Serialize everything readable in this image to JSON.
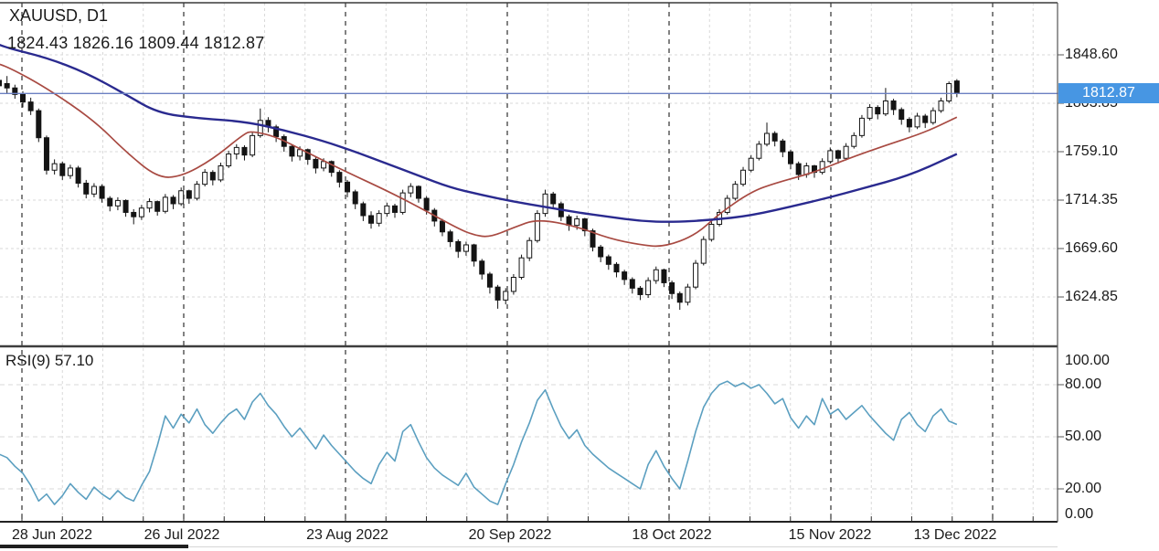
{
  "header": {
    "symbol_period": "XAUUSD, D1",
    "ohlc_line": "1824.43 1826.16 1809.44 1812.87"
  },
  "indicator": {
    "label": "RSI(9) 57.10"
  },
  "price_tag": {
    "value": "1812.87"
  },
  "price_axis": {
    "labels": [
      "1848.60",
      "1803.85",
      "1759.10",
      "1714.35",
      "1669.60",
      "1624.85"
    ],
    "values": [
      1848.6,
      1803.85,
      1759.1,
      1714.35,
      1669.6,
      1624.85
    ]
  },
  "rsi_axis": {
    "labels": [
      "100.00",
      "80.00",
      "50.00",
      "20.00",
      "0.00"
    ],
    "values": [
      100,
      80,
      50,
      20,
      0
    ]
  },
  "x_axis": {
    "labels": [
      "28 Jun 2022",
      "26 Jul 2022",
      "23 Aug 2022",
      "20 Sep 2022",
      "18 Oct 2022",
      "15 Nov 2022",
      "13 Dec 2022"
    ]
  },
  "colors": {
    "bull_fill": "#ffffff",
    "bear_fill": "#141414",
    "candle_stroke": "#141414",
    "ma_fast": "#a84a42",
    "ma_slow": "#2a2a8f",
    "price_line": "#6b80c2",
    "tag_bg": "#4796e3",
    "tag_text": "#ffffff",
    "rsi_line": "#5b9fc0",
    "grid_light": "#d9d9d9",
    "grid_dark": "#2f2f2f",
    "border": "#3a3a3a",
    "text": "#1a1a1a"
  },
  "chart_data": [
    {
      "type": "candlestick",
      "title": "XAUUSD, D1",
      "last_values": {
        "open": 1824.43,
        "high": 1826.16,
        "low": 1809.44,
        "close": 1812.87
      },
      "last_price": 1812.87,
      "y_ticks": [
        1848.6,
        1803.85,
        1759.1,
        1714.35,
        1669.6,
        1624.85
      ],
      "ylim_visible": [
        1580,
        1897
      ],
      "x_tick_labels": [
        "28 Jun 2022",
        "26 Jul 2022",
        "23 Aug 2022",
        "20 Sep 2022",
        "18 Oct 2022",
        "15 Nov 2022",
        "13 Dec 2022"
      ],
      "grid": true,
      "candles": [
        [
          1825,
          1831,
          1814,
          1820
        ],
        [
          1822,
          1829,
          1813,
          1818
        ],
        [
          1818,
          1821,
          1808,
          1812
        ],
        [
          1812,
          1815,
          1800,
          1805
        ],
        [
          1805,
          1809,
          1793,
          1797
        ],
        [
          1797,
          1799,
          1768,
          1772
        ],
        [
          1772,
          1774,
          1738,
          1742
        ],
        [
          1742,
          1752,
          1738,
          1748
        ],
        [
          1748,
          1750,
          1733,
          1737
        ],
        [
          1737,
          1747,
          1734,
          1744
        ],
        [
          1744,
          1746,
          1726,
          1730
        ],
        [
          1730,
          1733,
          1716,
          1720
        ],
        [
          1720,
          1730,
          1717,
          1727
        ],
        [
          1727,
          1729,
          1712,
          1716
        ],
        [
          1716,
          1718,
          1704,
          1709
        ],
        [
          1709,
          1717,
          1705,
          1714
        ],
        [
          1714,
          1715,
          1699,
          1703
        ],
        [
          1703,
          1706,
          1692,
          1699
        ],
        [
          1699,
          1710,
          1696,
          1707
        ],
        [
          1707,
          1716,
          1703,
          1713
        ],
        [
          1713,
          1714,
          1700,
          1704
        ],
        [
          1704,
          1720,
          1702,
          1717
        ],
        [
          1717,
          1719,
          1706,
          1711
        ],
        [
          1711,
          1726,
          1709,
          1723
        ],
        [
          1723,
          1724,
          1711,
          1716
        ],
        [
          1716,
          1732,
          1714,
          1729
        ],
        [
          1729,
          1743,
          1727,
          1740
        ],
        [
          1740,
          1742,
          1728,
          1733
        ],
        [
          1733,
          1749,
          1731,
          1746
        ],
        [
          1746,
          1760,
          1744,
          1757
        ],
        [
          1757,
          1766,
          1752,
          1763
        ],
        [
          1763,
          1765,
          1751,
          1756
        ],
        [
          1756,
          1777,
          1754,
          1774
        ],
        [
          1774,
          1799,
          1772,
          1788
        ],
        [
          1788,
          1791,
          1777,
          1782
        ],
        [
          1782,
          1784,
          1768,
          1773
        ],
        [
          1773,
          1775,
          1759,
          1764
        ],
        [
          1764,
          1766,
          1750,
          1755
        ],
        [
          1755,
          1764,
          1751,
          1761
        ],
        [
          1761,
          1762,
          1747,
          1752
        ],
        [
          1752,
          1754,
          1739,
          1744
        ],
        [
          1744,
          1753,
          1741,
          1750
        ],
        [
          1750,
          1751,
          1736,
          1740
        ],
        [
          1740,
          1742,
          1726,
          1731
        ],
        [
          1731,
          1733,
          1717,
          1722
        ],
        [
          1722,
          1724,
          1706,
          1711
        ],
        [
          1711,
          1713,
          1695,
          1700
        ],
        [
          1700,
          1704,
          1688,
          1693
        ],
        [
          1693,
          1705,
          1690,
          1702
        ],
        [
          1702,
          1712,
          1699,
          1709
        ],
        [
          1709,
          1711,
          1698,
          1703
        ],
        [
          1703,
          1724,
          1701,
          1721
        ],
        [
          1721,
          1730,
          1717,
          1727
        ],
        [
          1727,
          1728,
          1712,
          1716
        ],
        [
          1716,
          1718,
          1701,
          1705
        ],
        [
          1705,
          1707,
          1690,
          1695
        ],
        [
          1695,
          1697,
          1681,
          1685
        ],
        [
          1685,
          1687,
          1671,
          1676
        ],
        [
          1676,
          1678,
          1661,
          1667
        ],
        [
          1667,
          1676,
          1663,
          1673
        ],
        [
          1673,
          1674,
          1653,
          1658
        ],
        [
          1658,
          1660,
          1641,
          1646
        ],
        [
          1646,
          1648,
          1628,
          1634
        ],
        [
          1634,
          1636,
          1614,
          1622
        ],
        [
          1622,
          1633,
          1618,
          1630
        ],
        [
          1630,
          1646,
          1627,
          1643
        ],
        [
          1643,
          1664,
          1641,
          1661
        ],
        [
          1661,
          1680,
          1658,
          1677
        ],
        [
          1677,
          1705,
          1675,
          1702
        ],
        [
          1702,
          1724,
          1699,
          1720
        ],
        [
          1720,
          1722,
          1706,
          1711
        ],
        [
          1711,
          1713,
          1695,
          1699
        ],
        [
          1699,
          1701,
          1686,
          1691
        ],
        [
          1691,
          1700,
          1687,
          1697
        ],
        [
          1697,
          1698,
          1681,
          1686
        ],
        [
          1686,
          1688,
          1667,
          1671
        ],
        [
          1671,
          1673,
          1657,
          1662
        ],
        [
          1662,
          1664,
          1650,
          1655
        ],
        [
          1655,
          1657,
          1643,
          1648
        ],
        [
          1648,
          1650,
          1636,
          1641
        ],
        [
          1641,
          1643,
          1628,
          1633
        ],
        [
          1633,
          1635,
          1622,
          1627
        ],
        [
          1627,
          1643,
          1624,
          1640
        ],
        [
          1640,
          1653,
          1637,
          1650
        ],
        [
          1650,
          1651,
          1634,
          1638
        ],
        [
          1638,
          1640,
          1623,
          1628
        ],
        [
          1628,
          1630,
          1613,
          1620
        ],
        [
          1620,
          1637,
          1617,
          1634
        ],
        [
          1634,
          1659,
          1632,
          1656
        ],
        [
          1656,
          1681,
          1654,
          1678
        ],
        [
          1678,
          1695,
          1676,
          1692
        ],
        [
          1692,
          1706,
          1690,
          1703
        ],
        [
          1703,
          1719,
          1701,
          1716
        ],
        [
          1716,
          1732,
          1714,
          1729
        ],
        [
          1729,
          1745,
          1727,
          1742
        ],
        [
          1742,
          1756,
          1740,
          1753
        ],
        [
          1753,
          1769,
          1751,
          1766
        ],
        [
          1766,
          1786,
          1764,
          1776
        ],
        [
          1776,
          1778,
          1764,
          1769
        ],
        [
          1769,
          1771,
          1754,
          1759
        ],
        [
          1759,
          1761,
          1743,
          1748
        ],
        [
          1748,
          1750,
          1733,
          1738
        ],
        [
          1738,
          1749,
          1735,
          1746
        ],
        [
          1746,
          1747,
          1735,
          1740
        ],
        [
          1740,
          1753,
          1738,
          1750
        ],
        [
          1750,
          1763,
          1748,
          1760
        ],
        [
          1760,
          1761,
          1748,
          1753
        ],
        [
          1753,
          1767,
          1751,
          1764
        ],
        [
          1764,
          1777,
          1762,
          1774
        ],
        [
          1774,
          1793,
          1772,
          1790
        ],
        [
          1790,
          1803,
          1788,
          1800
        ],
        [
          1800,
          1802,
          1789,
          1794
        ],
        [
          1794,
          1818,
          1792,
          1806
        ],
        [
          1806,
          1808,
          1793,
          1798
        ],
        [
          1798,
          1800,
          1784,
          1789
        ],
        [
          1789,
          1791,
          1777,
          1782
        ],
        [
          1782,
          1795,
          1780,
          1792
        ],
        [
          1792,
          1794,
          1781,
          1786
        ],
        [
          1786,
          1800,
          1784,
          1797
        ],
        [
          1797,
          1809,
          1795,
          1806
        ],
        [
          1806,
          1824,
          1804,
          1822
        ],
        [
          1824.43,
          1826.16,
          1809.44,
          1812.87
        ]
      ],
      "overlays": [
        {
          "name": "ma-slow",
          "color_key": "ma_slow",
          "points": [
            [
              0,
              1858
            ],
            [
              1,
              1855
            ],
            [
              6,
              1846
            ],
            [
              11,
              1832
            ],
            [
              16,
              1812
            ],
            [
              20,
              1795
            ],
            [
              25,
              1790
            ],
            [
              31,
              1787
            ],
            [
              36,
              1779
            ],
            [
              41,
              1769
            ],
            [
              45,
              1759
            ],
            [
              49,
              1748
            ],
            [
              53,
              1737
            ],
            [
              57,
              1726
            ],
            [
              61,
              1719
            ],
            [
              65,
              1713
            ],
            [
              69,
              1708
            ],
            [
              73,
              1703
            ],
            [
              77,
              1699
            ],
            [
              81,
              1695
            ],
            [
              85,
              1694
            ],
            [
              90,
              1696
            ],
            [
              95,
              1700
            ],
            [
              101,
              1710
            ],
            [
              105,
              1717
            ],
            [
              109,
              1725
            ],
            [
              115,
              1737
            ],
            [
              121,
              1757
            ]
          ]
        },
        {
          "name": "ma-fast",
          "color_key": "ma_fast",
          "points": [
            [
              0,
              1840
            ],
            [
              1,
              1838
            ],
            [
              6,
              1818
            ],
            [
              12,
              1788
            ],
            [
              16,
              1759
            ],
            [
              20,
              1735
            ],
            [
              23,
              1736
            ],
            [
              27,
              1752
            ],
            [
              31,
              1776
            ],
            [
              32,
              1778
            ],
            [
              35,
              1773
            ],
            [
              39,
              1758
            ],
            [
              44,
              1740
            ],
            [
              49,
              1723
            ],
            [
              53,
              1708
            ],
            [
              58,
              1688
            ],
            [
              60,
              1682
            ],
            [
              62,
              1680
            ],
            [
              65,
              1689
            ],
            [
              68,
              1697
            ],
            [
              73,
              1690
            ],
            [
              77,
              1679
            ],
            [
              81,
              1673
            ],
            [
              84,
              1671
            ],
            [
              88,
              1682
            ],
            [
              91,
              1702
            ],
            [
              95,
              1722
            ],
            [
              98,
              1730
            ],
            [
              103,
              1740
            ],
            [
              107,
              1752
            ],
            [
              112,
              1765
            ],
            [
              117,
              1777
            ],
            [
              121,
              1791
            ]
          ]
        }
      ]
    },
    {
      "type": "line",
      "title": "RSI(9)",
      "current_value": 57.1,
      "y_ticks": [
        100,
        80,
        50,
        20,
        0
      ],
      "ylim": [
        0,
        100
      ],
      "grid": true,
      "values": [
        40,
        38,
        33,
        29,
        22,
        13,
        17,
        11,
        16,
        23,
        18,
        14,
        21,
        17,
        14,
        19,
        15,
        13,
        22,
        30,
        45,
        62,
        55,
        63,
        58,
        66,
        57,
        52,
        58,
        63,
        66,
        60,
        70,
        75,
        68,
        63,
        56,
        50,
        55,
        49,
        43,
        51,
        45,
        40,
        35,
        30,
        26,
        23,
        34,
        41,
        36,
        53,
        57,
        47,
        38,
        32,
        28,
        25,
        22,
        29,
        21,
        17,
        13,
        11,
        23,
        34,
        47,
        58,
        71,
        77,
        66,
        56,
        49,
        54,
        45,
        40,
        36,
        32,
        29,
        26,
        23,
        20,
        34,
        42,
        33,
        26,
        20,
        36,
        53,
        67,
        75,
        80,
        82,
        79,
        81,
        78,
        80,
        75,
        69,
        72,
        61,
        55,
        62,
        57,
        72,
        63,
        66,
        60,
        64,
        68,
        62,
        57,
        52,
        48,
        60,
        64,
        57,
        53,
        62,
        66,
        59,
        57.1
      ]
    }
  ]
}
